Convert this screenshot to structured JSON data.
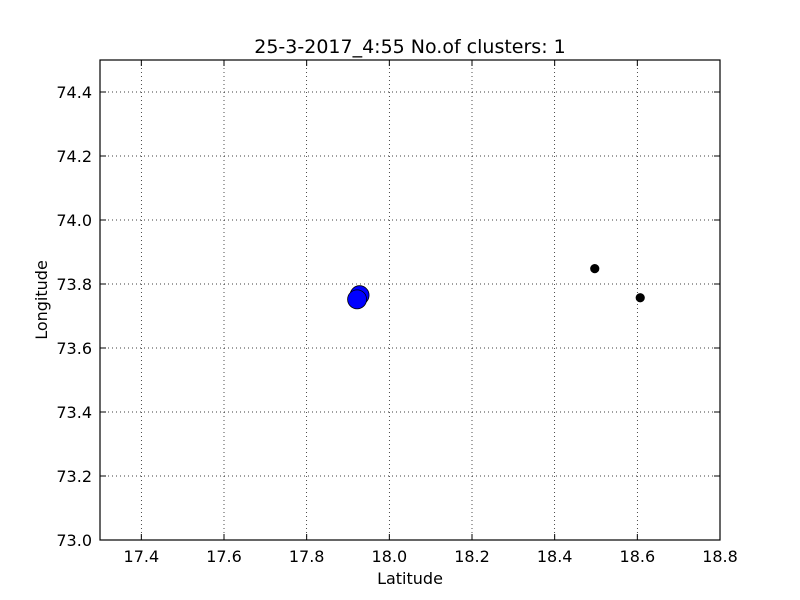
{
  "chart_data": {
    "type": "scatter",
    "title": "25-3-2017_4:55 No.of clusters: 1",
    "xlabel": "Latitude",
    "ylabel": "Longitude",
    "xlim": [
      17.3,
      18.8
    ],
    "ylim": [
      73.0,
      74.5
    ],
    "xticks": [
      "17.4",
      "17.6",
      "17.8",
      "18.0",
      "18.2",
      "18.4",
      "18.6",
      "18.8"
    ],
    "yticks": [
      "73.0",
      "73.2",
      "73.4",
      "73.6",
      "73.8",
      "74.0",
      "74.2",
      "74.4"
    ],
    "grid": true,
    "series": [
      {
        "color": "#0000ff",
        "marker": "large-circle",
        "points": [
          {
            "x": 17.928,
            "y": 73.765
          },
          {
            "x": 17.922,
            "y": 73.752
          }
        ]
      },
      {
        "color": "#000000",
        "marker": "small-circle",
        "points": [
          {
            "x": 18.497,
            "y": 73.848
          },
          {
            "x": 18.607,
            "y": 73.757
          }
        ]
      }
    ]
  }
}
